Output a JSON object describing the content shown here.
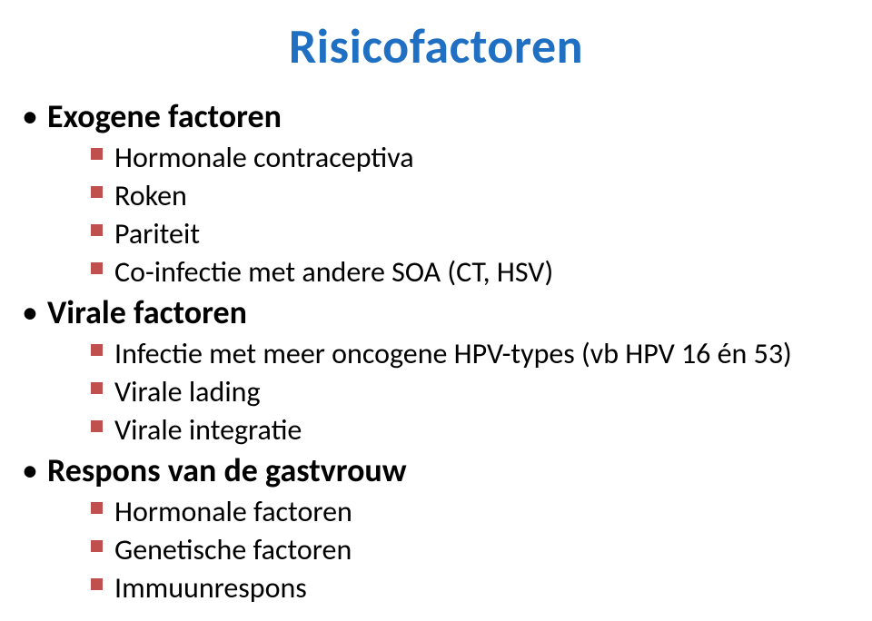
{
  "title": {
    "text": "Risicofactoren",
    "color": "#1f6fc3",
    "fontsize": 54
  },
  "bullets": {
    "lvl1_dot_color": "#000000",
    "lvl2_square_color": "#c0504d",
    "lvl1_fontsize": 36,
    "lvl2_fontsize": 32,
    "groups": [
      {
        "label": "Exogene factoren",
        "items": [
          "Hormonale contraceptiva",
          "Roken",
          "Pariteit",
          "Co-infectie met andere SOA (CT, HSV)"
        ]
      },
      {
        "label": "Virale factoren",
        "items": [
          "Infectie met meer oncogene HPV-types (vb HPV 16 én 53)",
          "Virale lading",
          "Virale integratie"
        ]
      },
      {
        "label": "Respons van de gastvrouw",
        "items": [
          "Hormonale factoren",
          "Genetische factoren",
          "Immuunrespons"
        ]
      }
    ]
  }
}
